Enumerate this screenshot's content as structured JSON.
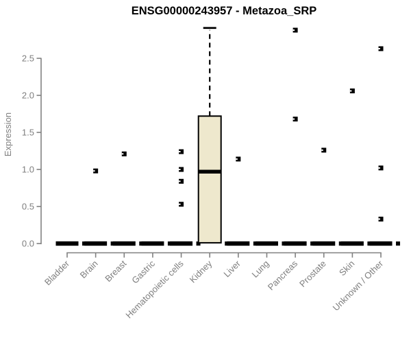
{
  "page": {
    "background": "#ffffff"
  },
  "chart_data": {
    "type": "boxplot",
    "title": "ENSG00000243957 - Metazoa_SRP",
    "xlabel": "",
    "ylabel": "Expression",
    "ylim": [
      -0.13,
      2.95
    ],
    "yticks": [
      "0.0",
      "0.5",
      "1.0",
      "1.5",
      "2.0",
      "2.5"
    ],
    "grid": false,
    "legend": null,
    "categories": [
      "Bladder",
      "Brain",
      "Breast",
      "Gastric",
      "Hematopoietic cells",
      "Kidney",
      "Liver",
      "Lung",
      "Pancreas",
      "Prostate",
      "Skin",
      "Unknown / Other"
    ],
    "series": [
      {
        "category": "Bladder",
        "q1": 0,
        "median": 0,
        "q3": 0,
        "whisker_low": 0,
        "whisker_high": 0,
        "outliers": []
      },
      {
        "category": "Brain",
        "q1": 0,
        "median": 0,
        "q3": 0,
        "whisker_low": 0,
        "whisker_high": 0,
        "outliers": [
          0.98
        ]
      },
      {
        "category": "Breast",
        "q1": 0,
        "median": 0,
        "q3": 0,
        "whisker_low": 0,
        "whisker_high": 0,
        "outliers": [
          1.21
        ]
      },
      {
        "category": "Gastric",
        "q1": 0,
        "median": 0,
        "q3": 0,
        "whisker_low": 0,
        "whisker_high": 0,
        "outliers": []
      },
      {
        "category": "Hematopoietic cells",
        "q1": 0,
        "median": 0,
        "q3": 0,
        "whisker_low": 0,
        "whisker_high": 0,
        "outliers": [
          1.24,
          1.0,
          0.84,
          0.53
        ]
      },
      {
        "category": "Kidney",
        "q1": 0.01,
        "median": 0.97,
        "q3": 1.72,
        "whisker_low": 0.01,
        "whisker_high": 2.91,
        "outliers": []
      },
      {
        "category": "Liver",
        "q1": 0,
        "median": 0,
        "q3": 0,
        "whisker_low": 0,
        "whisker_high": 0,
        "outliers": [
          1.14
        ]
      },
      {
        "category": "Lung",
        "q1": 0,
        "median": 0,
        "q3": 0,
        "whisker_low": 0,
        "whisker_high": 0,
        "outliers": []
      },
      {
        "category": "Pancreas",
        "q1": 0,
        "median": 0,
        "q3": 0,
        "whisker_low": 0,
        "whisker_high": 0,
        "outliers": [
          2.88,
          1.68
        ]
      },
      {
        "category": "Prostate",
        "q1": 0,
        "median": 0,
        "q3": 0,
        "whisker_low": 0,
        "whisker_high": 0,
        "outliers": [
          1.26
        ]
      },
      {
        "category": "Skin",
        "q1": 0,
        "median": 0,
        "q3": 0,
        "whisker_low": 0,
        "whisker_high": 0,
        "outliers": [
          2.06
        ]
      },
      {
        "category": "Unknown / Other",
        "q1": 0,
        "median": 0,
        "q3": 0,
        "whisker_low": 0,
        "whisker_high": 0,
        "outliers": [
          2.63,
          1.02,
          0.33
        ]
      }
    ],
    "colors": {
      "box_fill": "#EEE8CD",
      "box_stroke": "#000000",
      "median": "#000000",
      "outlier": "#000000",
      "axis": "#808080",
      "tick_label": "#7f7f7f",
      "title": "#000000",
      "background": "#ffffff"
    }
  }
}
